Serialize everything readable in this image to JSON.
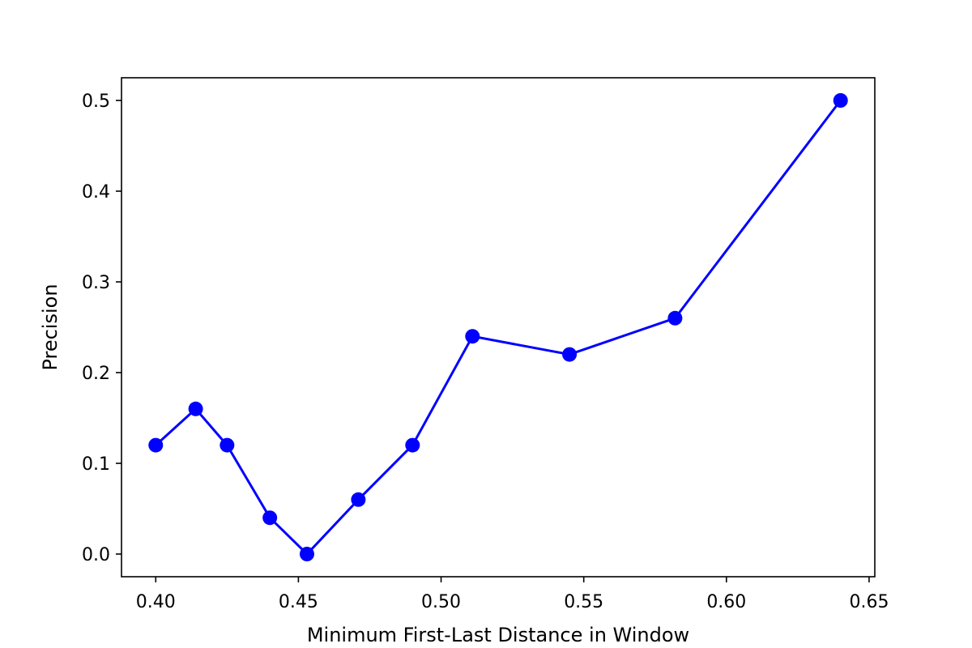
{
  "chart_data": {
    "type": "line",
    "xlabel": "Minimum First-Last Distance in Window",
    "ylabel": "Precision",
    "xlim": [
      0.388,
      0.652
    ],
    "ylim": [
      -0.025,
      0.525
    ],
    "xticks": [
      0.4,
      0.45,
      0.5,
      0.55,
      0.6,
      0.65
    ],
    "xtick_labels": [
      "0.40",
      "0.45",
      "0.50",
      "0.55",
      "0.60",
      "0.65"
    ],
    "yticks": [
      0.0,
      0.1,
      0.2,
      0.3,
      0.4,
      0.5
    ],
    "ytick_labels": [
      "0.0",
      "0.1",
      "0.2",
      "0.3",
      "0.4",
      "0.5"
    ],
    "grid": false,
    "series": [
      {
        "color": "#0000ff",
        "marker": "circle",
        "x": [
          0.4,
          0.414,
          0.425,
          0.44,
          0.453,
          0.471,
          0.49,
          0.511,
          0.545,
          0.582,
          0.64
        ],
        "y": [
          0.12,
          0.16,
          0.12,
          0.04,
          0.0,
          0.06,
          0.12,
          0.24,
          0.22,
          0.26,
          0.5
        ]
      }
    ]
  }
}
